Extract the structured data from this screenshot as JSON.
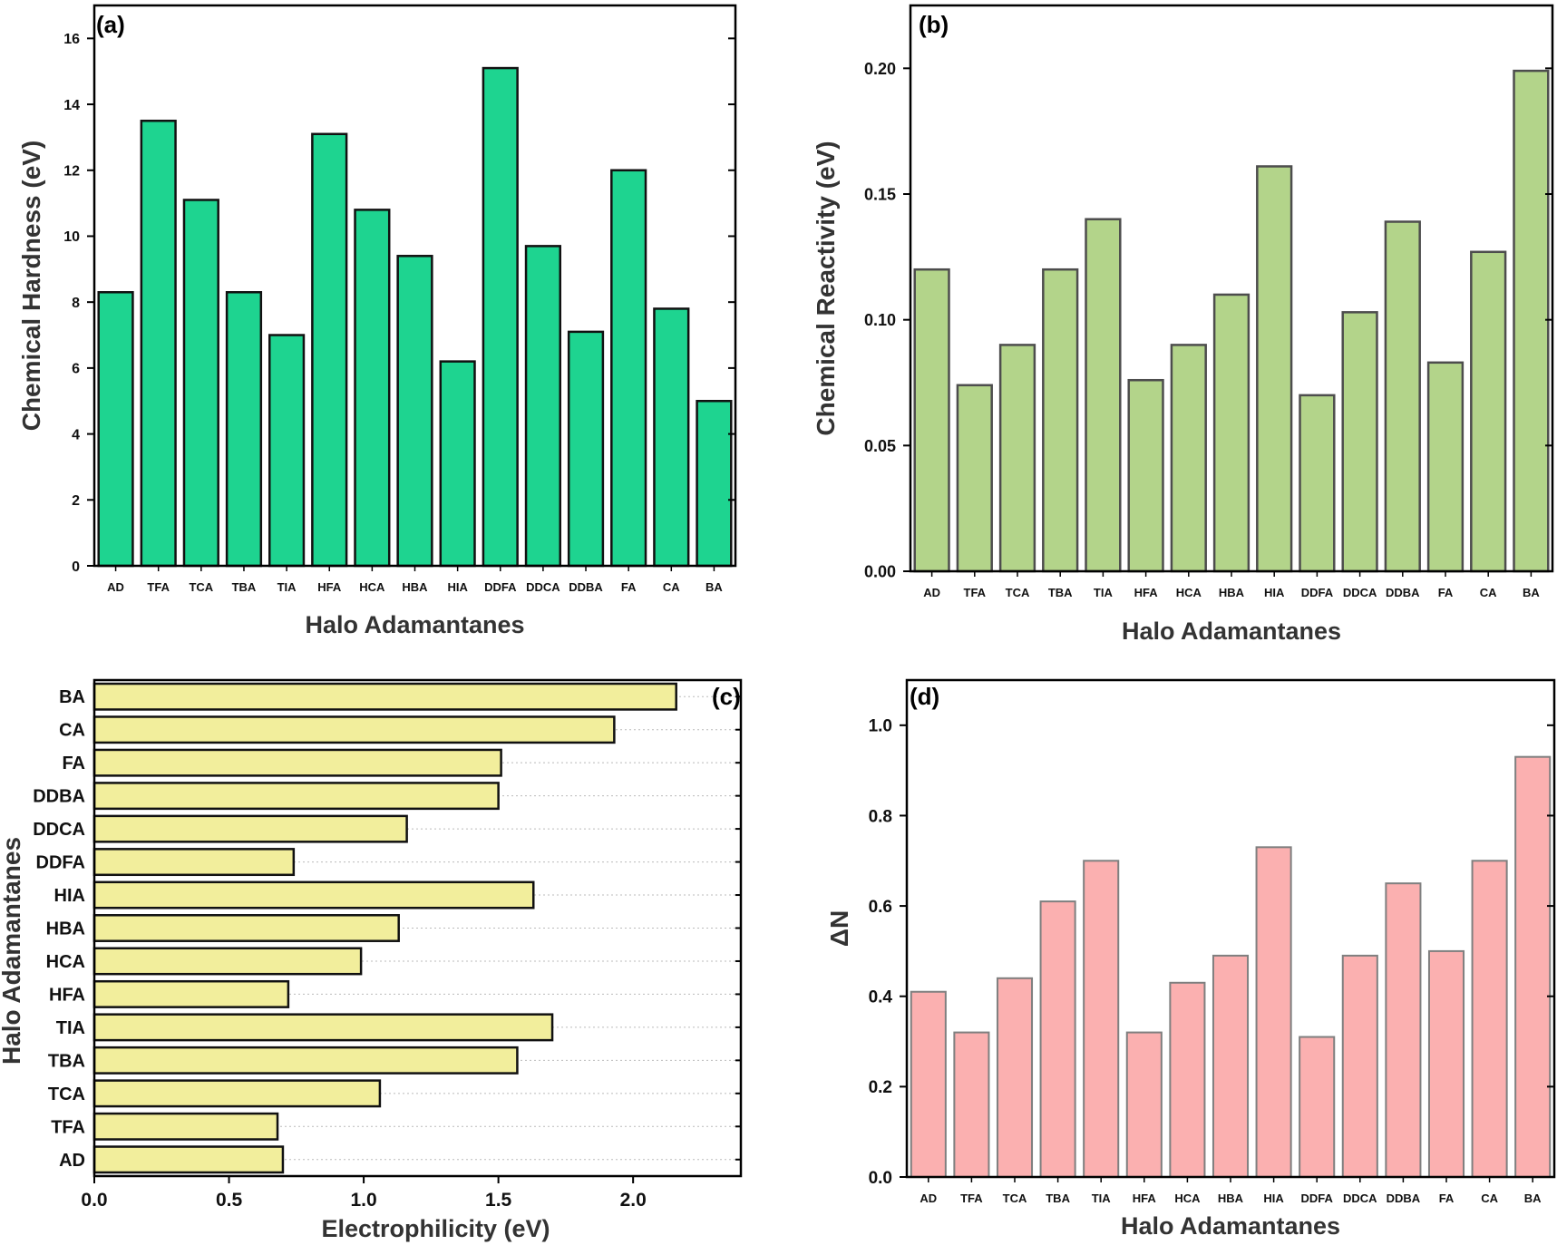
{
  "chart_data": [
    {
      "panel": "(a)",
      "type": "bar",
      "categories": [
        "AD",
        "TFA",
        "TCA",
        "TBA",
        "TIA",
        "HFA",
        "HCA",
        "HBA",
        "HIA",
        "DDFA",
        "DDCA",
        "DDBA",
        "FA",
        "CA",
        "BA"
      ],
      "values": [
        8.3,
        13.5,
        11.1,
        8.3,
        7.0,
        13.1,
        10.8,
        9.4,
        6.2,
        15.1,
        9.7,
        7.1,
        12.0,
        7.8,
        5.0
      ],
      "xlabel": "Halo Adamantanes",
      "ylabel": "Chemical Hardness (eV)",
      "ylim": [
        0,
        17
      ],
      "yticks": [
        "0",
        "2",
        "4",
        "6",
        "8",
        "10",
        "12",
        "14",
        "16"
      ],
      "color": "#1ed490"
    },
    {
      "panel": "(b)",
      "type": "bar",
      "categories": [
        "AD",
        "TFA",
        "TCA",
        "TBA",
        "TIA",
        "HFA",
        "HCA",
        "HBA",
        "HIA",
        "DDFA",
        "DDCA",
        "DDBA",
        "FA",
        "CA",
        "BA"
      ],
      "values": [
        0.12,
        0.074,
        0.09,
        0.12,
        0.14,
        0.076,
        0.09,
        0.11,
        0.161,
        0.07,
        0.103,
        0.139,
        0.083,
        0.127,
        0.199
      ],
      "xlabel": "Halo Adamantanes",
      "ylabel": "Chemical Reactivity (eV)",
      "ylim": [
        0,
        0.225
      ],
      "yticks": [
        "0.00",
        "0.05",
        "0.10",
        "0.15",
        "0.20"
      ],
      "color": "#b3d48a"
    },
    {
      "panel": "(c)",
      "type": "bar",
      "orientation": "horizontal",
      "categories": [
        "AD",
        "TFA",
        "TCA",
        "TBA",
        "TIA",
        "HFA",
        "HCA",
        "HBA",
        "HIA",
        "DDFA",
        "DDCA",
        "DDBA",
        "FA",
        "CA",
        "BA"
      ],
      "values": [
        0.7,
        0.68,
        1.06,
        1.57,
        1.7,
        0.72,
        0.99,
        1.13,
        1.63,
        0.74,
        1.16,
        1.5,
        1.51,
        1.93,
        2.16
      ],
      "xlabel": "Electrophilicity (eV)",
      "ylabel": "Halo Adamantanes",
      "xlim": [
        0,
        2.4
      ],
      "xticks": [
        "0.0",
        "0.5",
        "1.0",
        "1.5",
        "2.0"
      ],
      "grid": true,
      "color": "#f2ee9c"
    },
    {
      "panel": "(d)",
      "type": "bar",
      "categories": [
        "AD",
        "TFA",
        "TCA",
        "TBA",
        "TIA",
        "HFA",
        "HCA",
        "HBA",
        "HIA",
        "DDFA",
        "DDCA",
        "DDBA",
        "FA",
        "CA",
        "BA"
      ],
      "values": [
        0.41,
        0.32,
        0.44,
        0.61,
        0.7,
        0.32,
        0.43,
        0.49,
        0.73,
        0.31,
        0.49,
        0.65,
        0.5,
        0.7,
        0.93
      ],
      "xlabel": "Halo Adamantanes",
      "ylabel": "ΔN",
      "ylim": [
        0,
        1.1
      ],
      "yticks": [
        "0.0",
        "0.2",
        "0.4",
        "0.6",
        "0.8",
        "1.0"
      ],
      "color": "#fbb0b0"
    }
  ]
}
